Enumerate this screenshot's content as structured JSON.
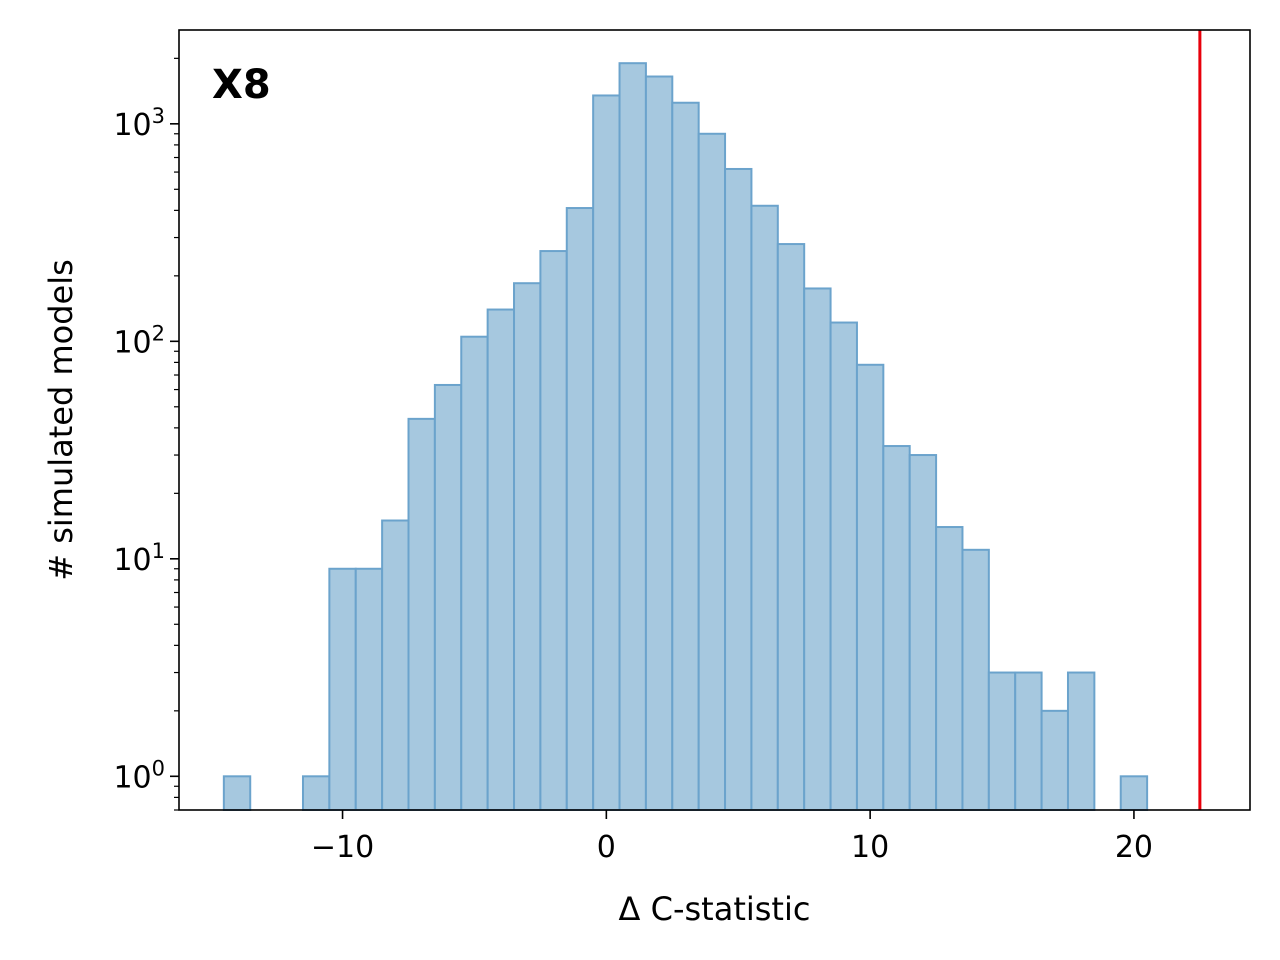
{
  "chart_data": {
    "type": "bar",
    "panel_label": "X8",
    "xlabel": "Δ C-statistic",
    "ylabel": "# simulated models",
    "yscale": "log",
    "xlim": [
      -16.2,
      24.4
    ],
    "ylim": [
      0.7,
      2700
    ],
    "x_ticks": [
      -10,
      0,
      10,
      20
    ],
    "x_tick_labels": [
      "−10",
      "0",
      "10",
      "20"
    ],
    "y_ticks": [
      1,
      10,
      100,
      1000
    ],
    "y_tick_base": "10",
    "y_tick_exponents": [
      "0",
      "1",
      "2",
      "3"
    ],
    "bin_width": 1.0,
    "bins": [
      {
        "x0": -14.5,
        "value": 1
      },
      {
        "x0": -11.5,
        "value": 1
      },
      {
        "x0": -10.5,
        "value": 9
      },
      {
        "x0": -9.5,
        "value": 9
      },
      {
        "x0": -8.5,
        "value": 15
      },
      {
        "x0": -7.5,
        "value": 44
      },
      {
        "x0": -6.5,
        "value": 63
      },
      {
        "x0": -5.5,
        "value": 105
      },
      {
        "x0": -4.5,
        "value": 140
      },
      {
        "x0": -3.5,
        "value": 185
      },
      {
        "x0": -2.5,
        "value": 260
      },
      {
        "x0": -1.5,
        "value": 410
      },
      {
        "x0": -0.5,
        "value": 1350
      },
      {
        "x0": 0.5,
        "value": 1900
      },
      {
        "x0": 1.5,
        "value": 1650
      },
      {
        "x0": 2.5,
        "value": 1250
      },
      {
        "x0": 3.5,
        "value": 900
      },
      {
        "x0": 4.5,
        "value": 620
      },
      {
        "x0": 5.5,
        "value": 420
      },
      {
        "x0": 6.5,
        "value": 280
      },
      {
        "x0": 7.5,
        "value": 175
      },
      {
        "x0": 8.5,
        "value": 122
      },
      {
        "x0": 9.5,
        "value": 78
      },
      {
        "x0": 10.5,
        "value": 33
      },
      {
        "x0": 11.5,
        "value": 30
      },
      {
        "x0": 12.5,
        "value": 14
      },
      {
        "x0": 13.5,
        "value": 11
      },
      {
        "x0": 14.5,
        "value": 3
      },
      {
        "x0": 15.5,
        "value": 3
      },
      {
        "x0": 16.5,
        "value": 2
      },
      {
        "x0": 17.5,
        "value": 3
      },
      {
        "x0": 19.5,
        "value": 1
      }
    ],
    "reference_line": {
      "x": 22.5,
      "color": "#e8000b"
    },
    "bar_fill": "#a6c8df",
    "bar_edge": "#6ba3cc",
    "grid": false,
    "legend": "none"
  }
}
